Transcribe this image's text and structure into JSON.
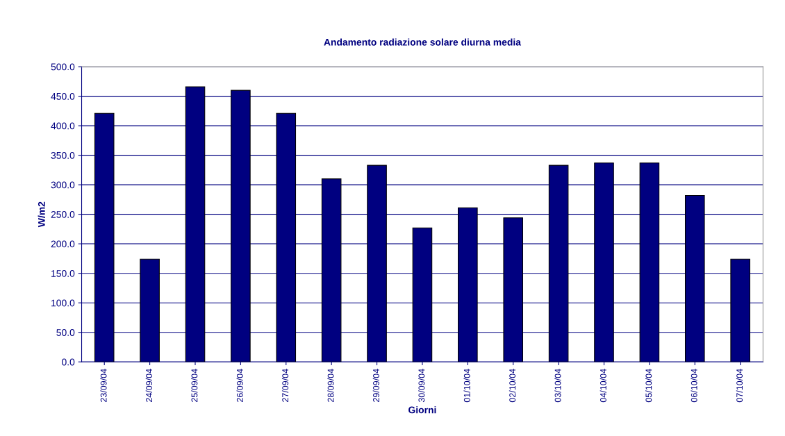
{
  "chart_data": {
    "type": "bar",
    "title": "Andamento radiazione solare diurna media",
    "xlabel": "Giorni",
    "ylabel": "W/m2",
    "categories": [
      "23/09/04",
      "24/09/04",
      "25/09/04",
      "26/09/04",
      "27/09/04",
      "28/09/04",
      "29/09/04",
      "30/09/04",
      "01/10/04",
      "02/10/04",
      "03/10/04",
      "04/10/04",
      "05/10/04",
      "06/10/04",
      "07/10/04"
    ],
    "values": [
      421,
      174,
      466,
      460,
      421,
      310,
      333,
      227,
      261,
      244,
      333,
      337,
      337,
      282,
      174
    ],
    "color": "#000080",
    "ylim": [
      0,
      500
    ],
    "yticks": [
      {
        "value": 0,
        "label": "0.0"
      },
      {
        "value": 50,
        "label": "50.0"
      },
      {
        "value": 100,
        "label": "100.0"
      },
      {
        "value": 150,
        "label": "150.0"
      },
      {
        "value": 200,
        "label": "200.0"
      },
      {
        "value": 250,
        "label": "250.0"
      },
      {
        "value": 300,
        "label": "300.0"
      },
      {
        "value": 350,
        "label": "350.0"
      },
      {
        "value": 400,
        "label": "400.0"
      },
      {
        "value": 450,
        "label": "450.0"
      },
      {
        "value": 500,
        "label": "500.0"
      }
    ],
    "grid": "y"
  }
}
